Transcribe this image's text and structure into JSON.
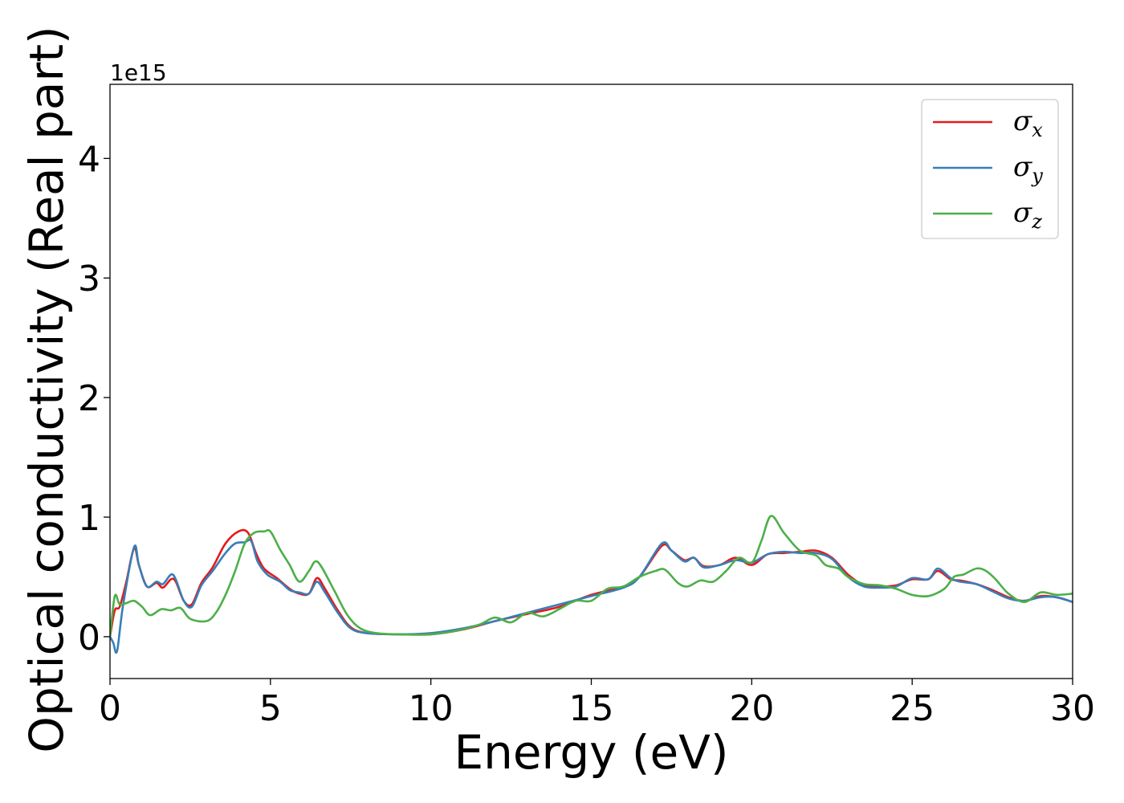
{
  "chart_data": {
    "type": "line",
    "xlabel": "Energy (eV)",
    "ylabel": "Optical conductivity (Real part)",
    "y_offset_label": "1e15",
    "xlim": [
      0,
      30
    ],
    "ylim": [
      -0.35,
      4.62
    ],
    "y_scale_factor": 1000000000000000.0,
    "xticks": [
      0,
      5,
      10,
      15,
      20,
      25,
      30
    ],
    "xtick_labels": [
      "0",
      "5",
      "10",
      "15",
      "20",
      "25",
      "30"
    ],
    "yticks": [
      0,
      1,
      2,
      3,
      4
    ],
    "ytick_labels": [
      "0",
      "1",
      "2",
      "3",
      "4"
    ],
    "grid": false,
    "legend_position": "top-right",
    "series": [
      {
        "name": "σx",
        "symbol": "σ",
        "subscript": "x",
        "color": "#e41a1c",
        "points": [
          [
            0,
            0
          ],
          [
            0.15,
            0.22
          ],
          [
            0.3,
            0.25
          ],
          [
            0.5,
            0.45
          ],
          [
            0.75,
            0.74
          ],
          [
            0.9,
            0.6
          ],
          [
            1.15,
            0.42
          ],
          [
            1.45,
            0.45
          ],
          [
            1.65,
            0.41
          ],
          [
            1.9,
            0.48
          ],
          [
            2.05,
            0.46
          ],
          [
            2.3,
            0.3
          ],
          [
            2.55,
            0.27
          ],
          [
            2.85,
            0.45
          ],
          [
            3.2,
            0.58
          ],
          [
            3.6,
            0.78
          ],
          [
            4.0,
            0.88
          ],
          [
            4.3,
            0.87
          ],
          [
            4.55,
            0.7
          ],
          [
            4.8,
            0.57
          ],
          [
            5.2,
            0.49
          ],
          [
            5.6,
            0.4
          ],
          [
            5.9,
            0.36
          ],
          [
            6.2,
            0.36
          ],
          [
            6.45,
            0.49
          ],
          [
            6.7,
            0.4
          ],
          [
            7.1,
            0.22
          ],
          [
            7.5,
            0.08
          ],
          [
            8.0,
            0.03
          ],
          [
            9.0,
            0.02
          ],
          [
            10.0,
            0.02
          ],
          [
            11.0,
            0.06
          ],
          [
            12.0,
            0.13
          ],
          [
            13.0,
            0.19
          ],
          [
            14.0,
            0.25
          ],
          [
            15.0,
            0.35
          ],
          [
            16.0,
            0.42
          ],
          [
            16.5,
            0.5
          ],
          [
            17.2,
            0.76
          ],
          [
            17.5,
            0.72
          ],
          [
            17.9,
            0.64
          ],
          [
            18.2,
            0.66
          ],
          [
            18.5,
            0.59
          ],
          [
            19.0,
            0.6
          ],
          [
            19.5,
            0.66
          ],
          [
            20.0,
            0.6
          ],
          [
            20.5,
            0.69
          ],
          [
            21.0,
            0.7
          ],
          [
            21.5,
            0.71
          ],
          [
            22.0,
            0.72
          ],
          [
            22.5,
            0.66
          ],
          [
            23.0,
            0.52
          ],
          [
            23.5,
            0.43
          ],
          [
            24.0,
            0.42
          ],
          [
            24.5,
            0.43
          ],
          [
            25.0,
            0.48
          ],
          [
            25.5,
            0.48
          ],
          [
            25.8,
            0.55
          ],
          [
            26.2,
            0.48
          ],
          [
            26.5,
            0.47
          ],
          [
            27.0,
            0.44
          ],
          [
            27.5,
            0.39
          ],
          [
            28.0,
            0.33
          ],
          [
            28.5,
            0.3
          ],
          [
            29.0,
            0.34
          ],
          [
            29.5,
            0.33
          ],
          [
            30.0,
            0.29
          ]
        ]
      },
      {
        "name": "σy",
        "symbol": "σ",
        "subscript": "y",
        "color": "#377eb8",
        "points": [
          [
            0,
            0
          ],
          [
            0.1,
            -0.05
          ],
          [
            0.22,
            -0.12
          ],
          [
            0.4,
            0.25
          ],
          [
            0.75,
            0.75
          ],
          [
            0.9,
            0.6
          ],
          [
            1.15,
            0.42
          ],
          [
            1.45,
            0.46
          ],
          [
            1.65,
            0.44
          ],
          [
            1.9,
            0.52
          ],
          [
            2.05,
            0.48
          ],
          [
            2.3,
            0.3
          ],
          [
            2.55,
            0.25
          ],
          [
            2.85,
            0.43
          ],
          [
            3.2,
            0.55
          ],
          [
            3.6,
            0.7
          ],
          [
            3.9,
            0.78
          ],
          [
            4.2,
            0.79
          ],
          [
            4.4,
            0.8
          ],
          [
            4.6,
            0.63
          ],
          [
            4.9,
            0.52
          ],
          [
            5.3,
            0.46
          ],
          [
            5.6,
            0.39
          ],
          [
            5.9,
            0.37
          ],
          [
            6.2,
            0.36
          ],
          [
            6.45,
            0.46
          ],
          [
            6.7,
            0.37
          ],
          [
            7.1,
            0.2
          ],
          [
            7.5,
            0.07
          ],
          [
            8.0,
            0.03
          ],
          [
            9.0,
            0.02
          ],
          [
            10.0,
            0.03
          ],
          [
            11.0,
            0.07
          ],
          [
            12.0,
            0.13
          ],
          [
            13.0,
            0.2
          ],
          [
            14.0,
            0.27
          ],
          [
            15.0,
            0.34
          ],
          [
            16.0,
            0.41
          ],
          [
            16.5,
            0.5
          ],
          [
            17.2,
            0.78
          ],
          [
            17.5,
            0.72
          ],
          [
            17.9,
            0.63
          ],
          [
            18.2,
            0.66
          ],
          [
            18.5,
            0.58
          ],
          [
            19.0,
            0.6
          ],
          [
            19.5,
            0.64
          ],
          [
            20.0,
            0.62
          ],
          [
            20.5,
            0.69
          ],
          [
            21.0,
            0.71
          ],
          [
            21.5,
            0.7
          ],
          [
            22.0,
            0.7
          ],
          [
            22.5,
            0.65
          ],
          [
            23.0,
            0.5
          ],
          [
            23.5,
            0.42
          ],
          [
            24.0,
            0.41
          ],
          [
            24.5,
            0.42
          ],
          [
            25.0,
            0.49
          ],
          [
            25.5,
            0.48
          ],
          [
            25.8,
            0.57
          ],
          [
            26.2,
            0.49
          ],
          [
            26.5,
            0.46
          ],
          [
            27.0,
            0.44
          ],
          [
            27.5,
            0.38
          ],
          [
            28.0,
            0.32
          ],
          [
            28.5,
            0.3
          ],
          [
            29.0,
            0.33
          ],
          [
            29.5,
            0.33
          ],
          [
            30.0,
            0.29
          ]
        ]
      },
      {
        "name": "σz",
        "symbol": "σ",
        "subscript": "z",
        "color": "#4daf4a",
        "points": [
          [
            0,
            0
          ],
          [
            0.15,
            0.34
          ],
          [
            0.3,
            0.27
          ],
          [
            0.5,
            0.28
          ],
          [
            0.75,
            0.3
          ],
          [
            1.0,
            0.25
          ],
          [
            1.25,
            0.18
          ],
          [
            1.6,
            0.23
          ],
          [
            1.9,
            0.22
          ],
          [
            2.2,
            0.24
          ],
          [
            2.5,
            0.15
          ],
          [
            3.0,
            0.13
          ],
          [
            3.3,
            0.2
          ],
          [
            3.6,
            0.35
          ],
          [
            3.9,
            0.55
          ],
          [
            4.2,
            0.78
          ],
          [
            4.5,
            0.87
          ],
          [
            4.8,
            0.88
          ],
          [
            5.0,
            0.88
          ],
          [
            5.3,
            0.73
          ],
          [
            5.6,
            0.6
          ],
          [
            5.9,
            0.46
          ],
          [
            6.2,
            0.55
          ],
          [
            6.4,
            0.63
          ],
          [
            6.6,
            0.58
          ],
          [
            7.0,
            0.38
          ],
          [
            7.4,
            0.18
          ],
          [
            7.8,
            0.07
          ],
          [
            8.3,
            0.03
          ],
          [
            9.0,
            0.02
          ],
          [
            10.0,
            0.02
          ],
          [
            10.8,
            0.05
          ],
          [
            11.5,
            0.1
          ],
          [
            12.0,
            0.16
          ],
          [
            12.5,
            0.12
          ],
          [
            13.0,
            0.2
          ],
          [
            13.5,
            0.17
          ],
          [
            14.0,
            0.23
          ],
          [
            14.5,
            0.3
          ],
          [
            15.0,
            0.3
          ],
          [
            15.5,
            0.4
          ],
          [
            16.0,
            0.42
          ],
          [
            16.5,
            0.5
          ],
          [
            17.0,
            0.55
          ],
          [
            17.3,
            0.56
          ],
          [
            17.7,
            0.45
          ],
          [
            18.0,
            0.42
          ],
          [
            18.4,
            0.47
          ],
          [
            18.8,
            0.46
          ],
          [
            19.2,
            0.55
          ],
          [
            19.6,
            0.66
          ],
          [
            20.0,
            0.62
          ],
          [
            20.3,
            0.8
          ],
          [
            20.6,
            1.01
          ],
          [
            21.0,
            0.87
          ],
          [
            21.5,
            0.72
          ],
          [
            22.0,
            0.68
          ],
          [
            22.3,
            0.6
          ],
          [
            22.7,
            0.57
          ],
          [
            23.0,
            0.5
          ],
          [
            23.5,
            0.44
          ],
          [
            24.0,
            0.43
          ],
          [
            24.5,
            0.4
          ],
          [
            25.0,
            0.35
          ],
          [
            25.5,
            0.34
          ],
          [
            26.0,
            0.4
          ],
          [
            26.3,
            0.5
          ],
          [
            26.6,
            0.52
          ],
          [
            27.0,
            0.57
          ],
          [
            27.3,
            0.55
          ],
          [
            27.6,
            0.48
          ],
          [
            28.0,
            0.36
          ],
          [
            28.5,
            0.29
          ],
          [
            29.0,
            0.37
          ],
          [
            29.5,
            0.35
          ],
          [
            30.0,
            0.36
          ]
        ]
      }
    ]
  }
}
